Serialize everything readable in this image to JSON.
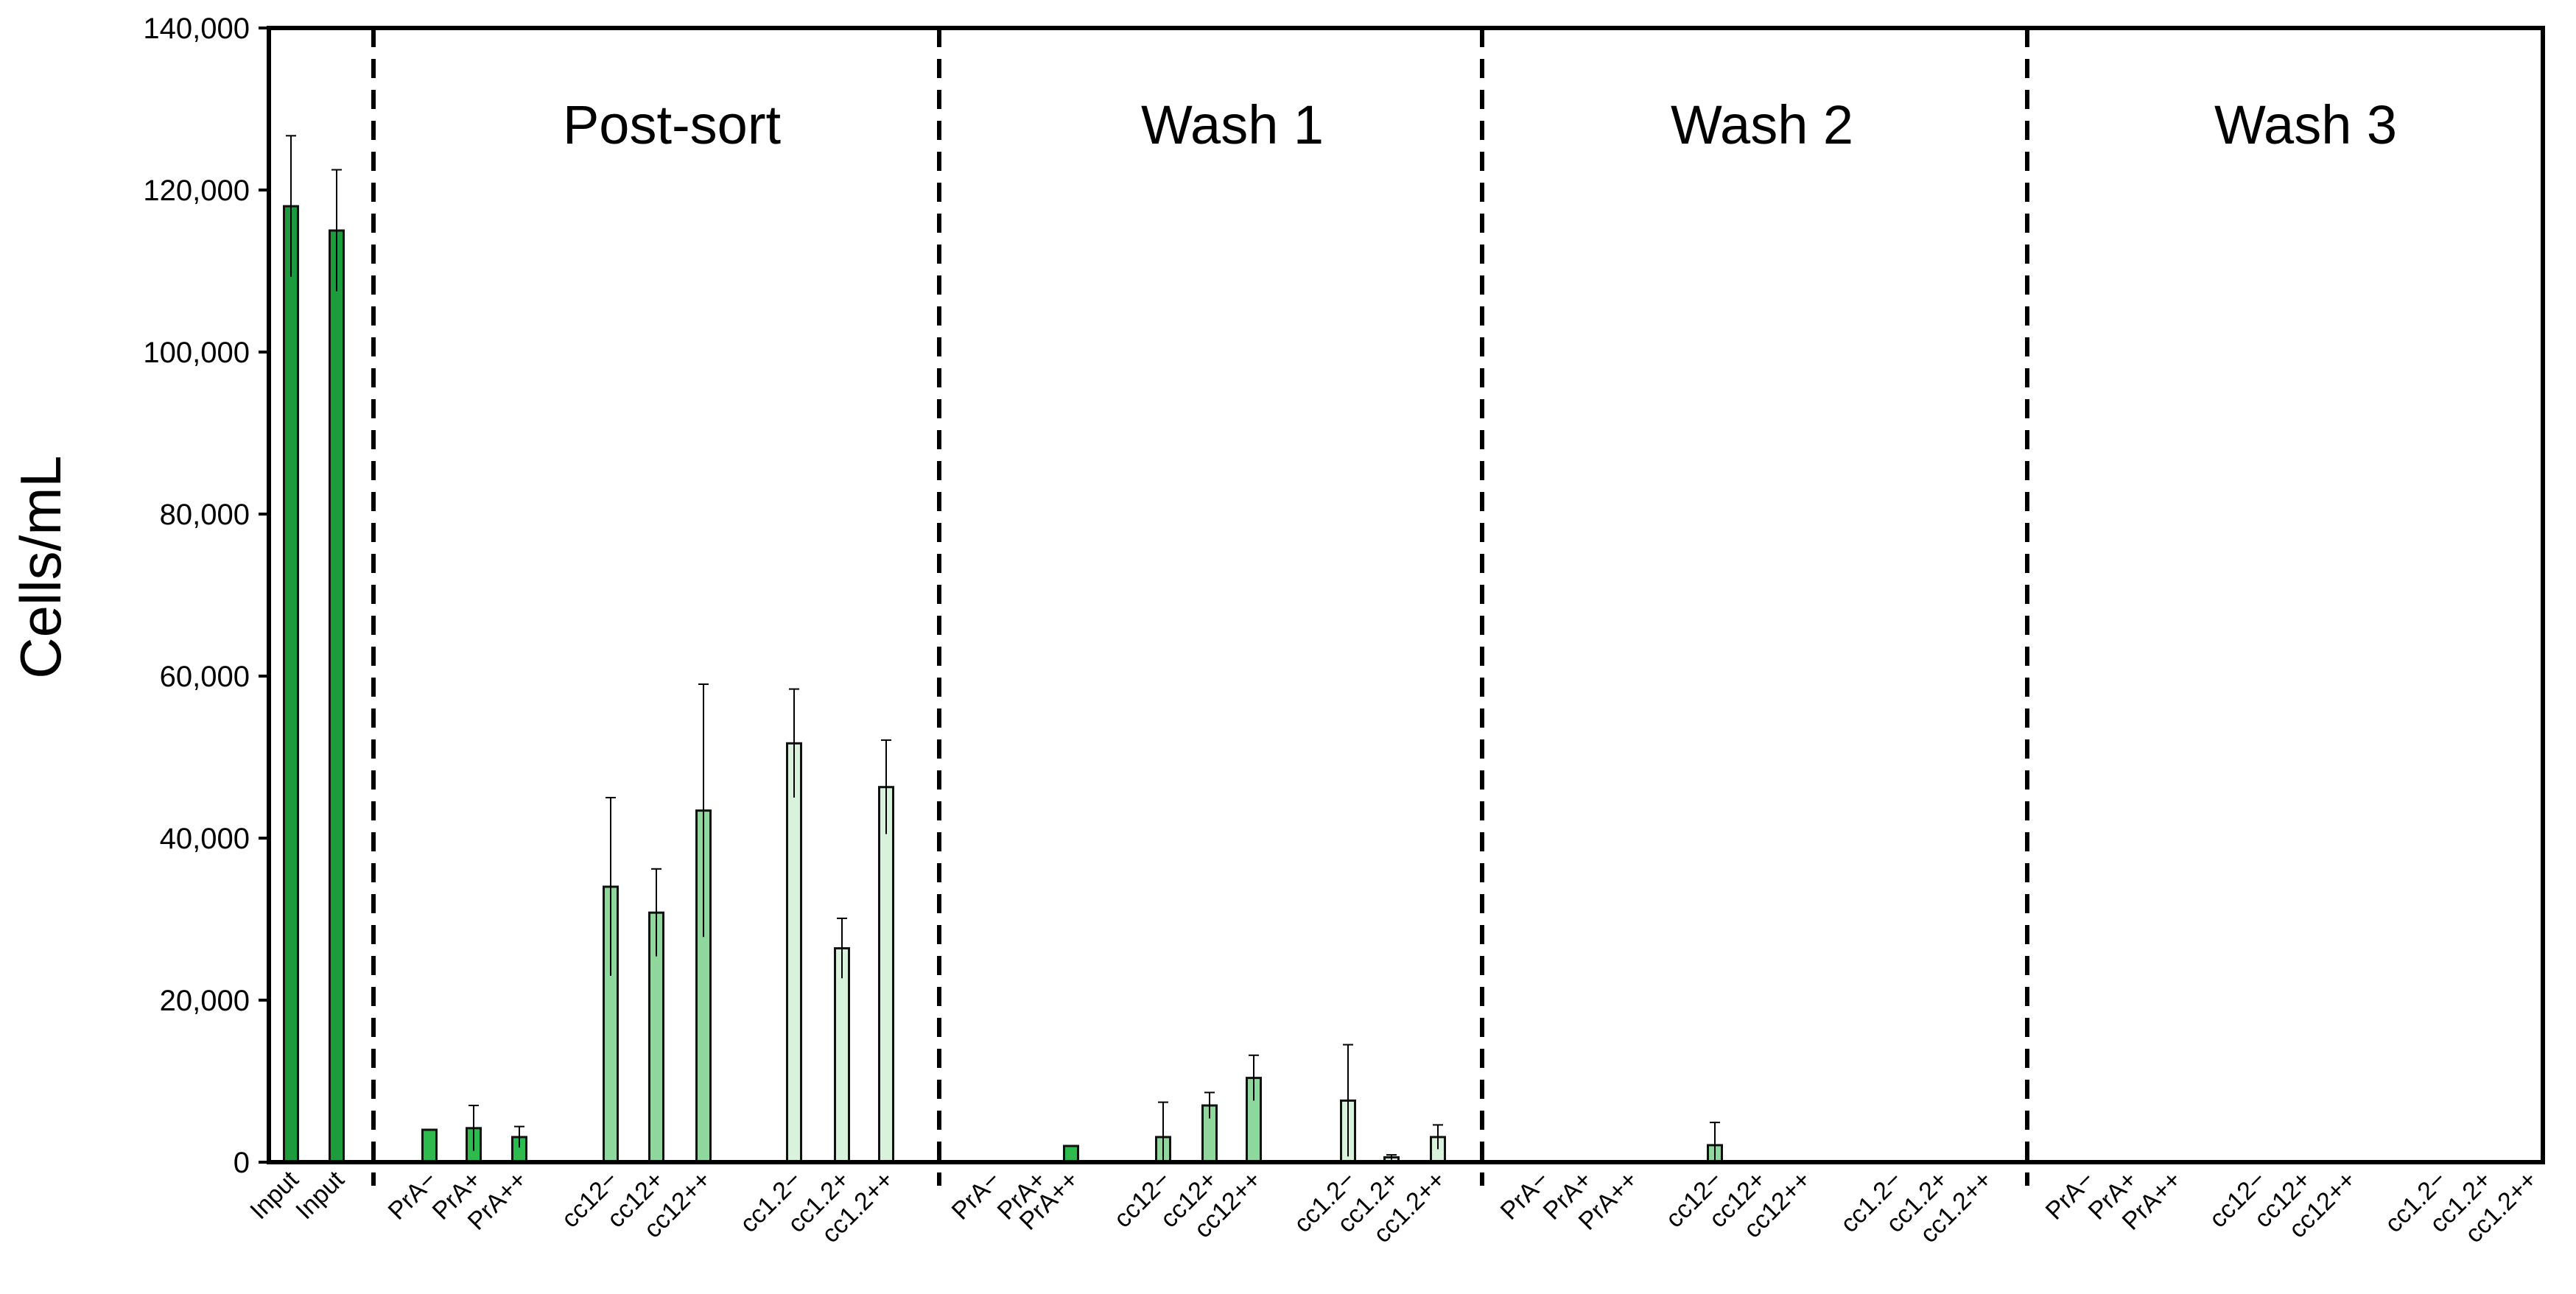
{
  "chart_data": {
    "type": "bar",
    "ylabel": "Cells/mL",
    "xlabel": "",
    "ylim": [
      0,
      140000
    ],
    "yticks": [
      0,
      20000,
      40000,
      60000,
      80000,
      100000,
      120000,
      140000
    ],
    "ytick_labels": [
      "0",
      "20,000",
      "40,000",
      "60,000",
      "80,000",
      "100,000",
      "120,000",
      "140,000"
    ],
    "grid": false,
    "error_bars": true,
    "colors": {
      "input": "#1e9b3c",
      "pra": "#2dbb4e",
      "cc12": "#8fd89d",
      "cc1_2": "#d8f2dc",
      "edge": "#111111"
    },
    "sections": [
      {
        "name": "Input",
        "title": "",
        "categories": [
          "Input",
          "Input"
        ],
        "groups": [
          "input",
          "input"
        ],
        "values": [
          118000,
          115000
        ],
        "errors": [
          8700,
          7500
        ]
      },
      {
        "name": "Post-sort",
        "title": "Post-sort",
        "categories": [
          "PrA−",
          "PrA+",
          "PrA++",
          "cc12−",
          "cc12+",
          "cc12++",
          "cc1.2−",
          "cc1.2+",
          "cc1.2++"
        ],
        "groups": [
          "pra",
          "pra",
          "pra",
          "cc12",
          "cc12",
          "cc12",
          "cc1_2",
          "cc1_2",
          "cc1_2"
        ],
        "values": [
          4000,
          4200,
          3100,
          34000,
          30800,
          43400,
          51700,
          26400,
          46300
        ],
        "errors": [
          0,
          2800,
          1300,
          11000,
          5400,
          15600,
          6700,
          3700,
          5800
        ]
      },
      {
        "name": "Wash 1",
        "title": "Wash 1",
        "categories": [
          "PrA−",
          "PrA+",
          "PrA++",
          "cc12−",
          "cc12+",
          "cc12++",
          "cc1.2−",
          "cc1.2+",
          "cc1.2++"
        ],
        "groups": [
          "pra",
          "pra",
          "pra",
          "cc12",
          "cc12",
          "cc12",
          "cc1_2",
          "cc1_2",
          "cc1_2"
        ],
        "values": [
          0,
          0,
          2000,
          3100,
          7000,
          10400,
          7600,
          600,
          3100
        ],
        "errors": [
          0,
          0,
          0,
          4300,
          1600,
          2800,
          6900,
          300,
          1500
        ]
      },
      {
        "name": "Wash 2",
        "title": "Wash 2",
        "categories": [
          "PrA−",
          "PrA+",
          "PrA++",
          "cc12−",
          "cc12+",
          "cc12++",
          "cc1.2−",
          "cc1.2+",
          "cc1.2++"
        ],
        "groups": [
          "pra",
          "pra",
          "pra",
          "cc12",
          "cc12",
          "cc12",
          "cc1_2",
          "cc1_2",
          "cc1_2"
        ],
        "values": [
          0,
          0,
          0,
          2100,
          0,
          0,
          0,
          0,
          0
        ],
        "errors": [
          0,
          0,
          0,
          2800,
          0,
          0,
          0,
          0,
          0
        ]
      },
      {
        "name": "Wash 3",
        "title": "Wash 3",
        "categories": [
          "PrA−",
          "PrA+",
          "PrA++",
          "cc12−",
          "cc12+",
          "cc12++",
          "cc1.2−",
          "cc1.2+",
          "cc1.2++"
        ],
        "groups": [
          "pra",
          "pra",
          "pra",
          "cc12",
          "cc12",
          "cc12",
          "cc1_2",
          "cc1_2",
          "cc1_2"
        ],
        "values": [
          0,
          0,
          0,
          0,
          0,
          0,
          0,
          0,
          0
        ],
        "errors": [
          0,
          0,
          0,
          0,
          0,
          0,
          0,
          0,
          0
        ]
      }
    ]
  }
}
